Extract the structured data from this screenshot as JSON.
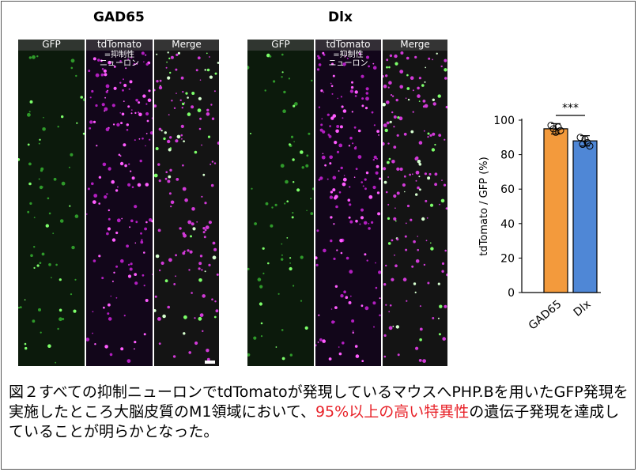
{
  "figure": {
    "groups": [
      {
        "title": "GAD65",
        "panels": [
          {
            "label": "GFP",
            "sub": "",
            "style": "green"
          },
          {
            "label": "tdTomato",
            "sub": "=抑制性\nニューロン",
            "style": "magenta"
          },
          {
            "label": "Merge",
            "sub": "",
            "style": "merge"
          }
        ]
      },
      {
        "title": "Dlx",
        "panels": [
          {
            "label": "GFP",
            "sub": "",
            "style": "green"
          },
          {
            "label": "tdTomato",
            "sub": "=抑制性\nニューロン",
            "style": "magenta"
          },
          {
            "label": "Merge",
            "sub": "",
            "style": "merge"
          }
        ]
      }
    ]
  },
  "chart_data": {
    "type": "bar",
    "categories": [
      "GAD65",
      "Dlx"
    ],
    "values": [
      95,
      88
    ],
    "errors": [
      3,
      3
    ],
    "points": [
      [
        97,
        95,
        93,
        96,
        94
      ],
      [
        90,
        86,
        89,
        87,
        85
      ]
    ],
    "bar_colors": [
      "#f39a3c",
      "#4f87d6"
    ],
    "ylabel": "tdTomato / GFP (%)",
    "ylim": [
      0,
      100
    ],
    "yticks": [
      0,
      20,
      40,
      60,
      80,
      100
    ],
    "significance": "***"
  },
  "caption": {
    "part1": "図２すべての抑制ニューロンでtdTomatoが発現しているマウスへPHP.Bを用いたGFP発現を実施したところ大脳皮質のM1領域において、",
    "highlight": "95%以上の高い特異性",
    "part2": "の遺伝子発現を達成していることが明らかとなった。",
    "highlight_color": "#e8232a"
  }
}
